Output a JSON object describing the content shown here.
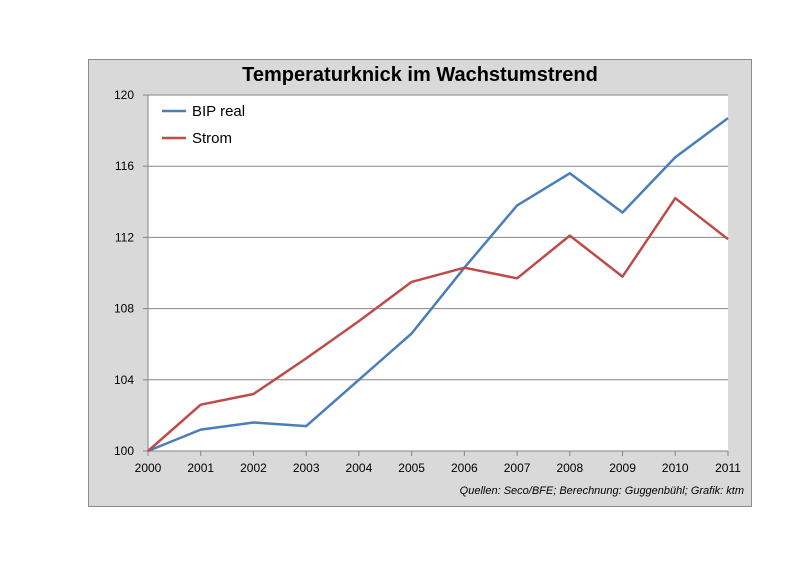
{
  "chart_data": {
    "type": "line",
    "title": "Temperaturknick im Wachstumstrend",
    "source_note": "Quellen: Seco/BFE; Berechnung: Guggenbühl; Grafik: ktm",
    "x": [
      2000,
      2001,
      2002,
      2003,
      2004,
      2005,
      2006,
      2007,
      2008,
      2009,
      2010,
      2011
    ],
    "series": [
      {
        "name": "BIP real",
        "color": "#4a7ebb",
        "values": [
          100,
          101.2,
          101.6,
          101.4,
          104.0,
          106.6,
          110.3,
          113.8,
          115.6,
          113.4,
          116.5,
          118.7
        ]
      },
      {
        "name": "Strom",
        "color": "#be4b48",
        "values": [
          100,
          102.6,
          103.2,
          105.2,
          107.3,
          109.5,
          110.3,
          109.7,
          112.1,
          109.8,
          114.2,
          111.9
        ]
      }
    ],
    "ylim": [
      100,
      120
    ],
    "yticks": [
      100,
      104,
      108,
      112,
      116,
      120
    ],
    "grid": true,
    "legend": "top-left"
  }
}
